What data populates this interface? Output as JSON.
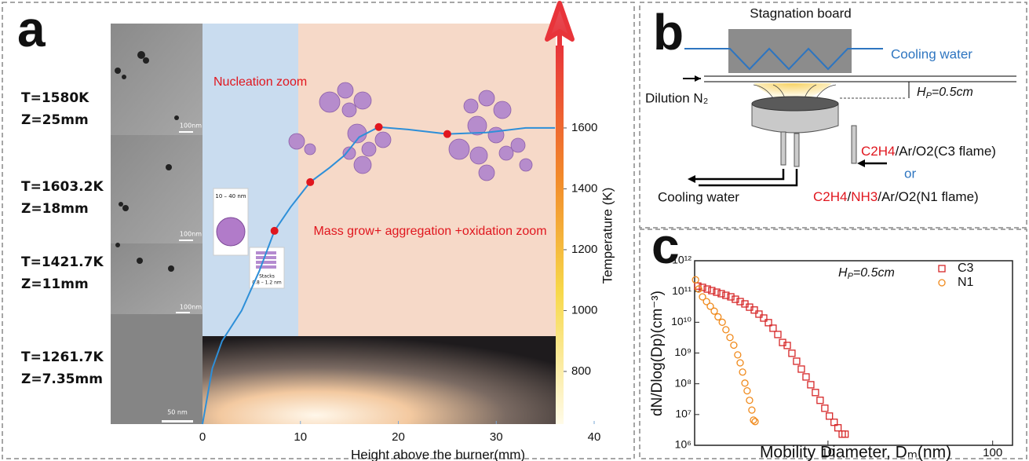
{
  "chart_data": [
    {
      "type": "line",
      "panel": "a",
      "x_label": "Height above the burner(mm)",
      "y_label": "Temperature (K)",
      "xlim": [
        0,
        40
      ],
      "xticks": [
        0,
        10,
        20,
        30,
        40
      ],
      "ylim": [
        627,
        1943
      ],
      "yticks": [
        800,
        1000,
        1200,
        1400,
        1600
      ],
      "zones": [
        "Nucleation zoom",
        "Mass grow+ aggregation +oxidation zoom"
      ],
      "conditions": [
        {
          "T": "T=1580K",
          "Z": "Z=25mm",
          "scale": "100nm"
        },
        {
          "T": "T=1603.2K",
          "Z": "Z=18mm",
          "scale": "100nm"
        },
        {
          "T": "T=1421.7K",
          "Z": "Z=11mm",
          "scale": "100nm"
        },
        {
          "T": "T=1261.7K",
          "Z": "Z=7.35mm",
          "scale": "50 nm"
        }
      ],
      "insets": [
        "10 – 40 nm",
        "Stacks",
        "0.8 – 1.2 nm"
      ],
      "series": [
        {
          "color": "#2e8fd8",
          "x": [
            0,
            1,
            2,
            4,
            5.8,
            7.35,
            9,
            11,
            13,
            14.5,
            16,
            18,
            21,
            25,
            29,
            33,
            36
          ],
          "values": [
            627,
            810,
            900,
            1000,
            1130,
            1262,
            1340,
            1422,
            1470,
            1510,
            1570,
            1603,
            1595,
            1580,
            1585,
            1600,
            1600
          ]
        },
        {
          "color": "#e0161e",
          "x": [
            7.35,
            11,
            18,
            25
          ],
          "values": [
            1262,
            1422,
            1603,
            1580
          ]
        }
      ]
    },
    {
      "type": "scatter",
      "panel": "c",
      "log_x": true,
      "log_y": true,
      "x_label": "Mobility Diameter, Dₘ(nm)",
      "y_label": "dN/Dlog(Dp)(cm⁻³)",
      "annotation": {
        "symbol": "H",
        "subscript": "P",
        "text": "=0.5cm"
      },
      "xlim": [
        1.55,
        132
      ],
      "xticks": [
        10,
        100
      ],
      "ylim": [
        1000000,
        1000000000000
      ],
      "yticks": [
        {
          "value": 1000000,
          "label": "10⁶"
        },
        {
          "value": 10000000,
          "label": "10⁷"
        },
        {
          "value": 100000000,
          "label": "10⁸"
        },
        {
          "value": 1000000000,
          "label": "10⁹"
        },
        {
          "value": 10000000000,
          "label": "10¹⁰"
        },
        {
          "value": 100000000000,
          "label": "10¹¹"
        },
        {
          "value": 1000000000000,
          "label": "10¹²"
        }
      ],
      "series": [
        {
          "name": "C3",
          "color": "#d62728",
          "marker": "square",
          "x": [
            1.62,
            1.73,
            1.85,
            1.97,
            2.11,
            2.25,
            2.4,
            2.57,
            2.74,
            2.93,
            3.13,
            3.34,
            3.57,
            3.81,
            4.07,
            4.35,
            4.64,
            4.96,
            5.3,
            5.66,
            6.04,
            6.45,
            6.89,
            7.36,
            7.86,
            8.39,
            8.96,
            9.57,
            10.2,
            10.9,
            11.5,
            12.2,
            12.7
          ],
          "values": [
            150000000000,
            136000000000,
            120000000000,
            107000000000,
            95000000000,
            85000000000,
            75000000000,
            67000000000,
            56000000000,
            47000000000,
            39500000000,
            31000000000,
            25000000000,
            18400000000,
            13700000000,
            9700000000,
            6400000000,
            4000000000,
            2200000000,
            1760000000,
            980000000,
            540000000,
            300000000,
            167000000,
            93000000,
            52000000,
            29000000,
            16000000,
            8900000,
            5600000,
            3700000,
            2300000,
            2300000
          ]
        },
        {
          "name": "N1",
          "color": "#f08a1c",
          "marker": "circle",
          "x": [
            1.57,
            1.64,
            1.73,
            1.83,
            1.93,
            2.04,
            2.15,
            2.28,
            2.4,
            2.54,
            2.68,
            2.83,
            2.93,
            3.03,
            3.13,
            3.23,
            3.34,
            3.45,
            3.53,
            3.61
          ],
          "values": [
            240000000000,
            120000000000,
            67000000000,
            47000000000,
            33000000000,
            23000000000,
            15000000000,
            10000000000,
            5700000000,
            3200000000,
            1800000000,
            870000000,
            480000000,
            240000000,
            105000000,
            59000000,
            29000000,
            14000000,
            6600000,
            5900000
          ]
        }
      ]
    }
  ],
  "panel_b": {
    "label": "b",
    "board": "Stagnation board",
    "cooling_top": "Cooling water",
    "dilution": "Dilution N₂",
    "gap": {
      "symbol": "H",
      "subscript": "P",
      "text": "=0.5cm"
    },
    "feed_c3": [
      "C2H4",
      "/Ar/O2(C3 flame)"
    ],
    "or": "or",
    "feed_n1": [
      "C2H4",
      "/",
      "NH3",
      "/Ar/O2(N1 flame)"
    ],
    "cooling_bottom": "Cooling water"
  }
}
